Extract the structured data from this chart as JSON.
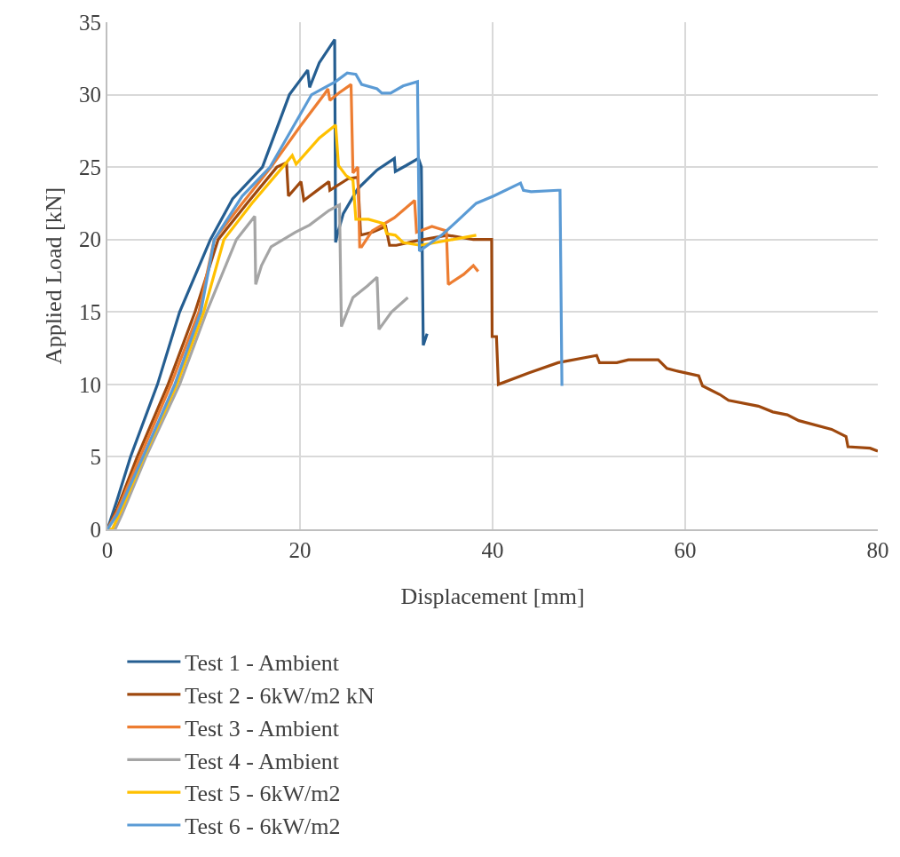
{
  "chart_data": {
    "type": "line",
    "xlabel": "Displacement [mm]",
    "ylabel": "Applied Load [kN]",
    "xlim": [
      0,
      80
    ],
    "xticks": [
      0,
      20,
      40,
      60,
      80
    ],
    "ylim": [
      0,
      35
    ],
    "yticks": [
      0,
      5,
      10,
      15,
      20,
      25,
      30,
      35
    ],
    "grid": true,
    "legend": "bottom",
    "marker": "none",
    "line_style": "solid",
    "series": [
      {
        "name": "Test 1 - Ambient",
        "color": "#255e91",
        "x": [
          0,
          1,
          2.4,
          5.2,
          7.5,
          10.7,
          13,
          16.1,
          18.9,
          20.8,
          21,
          22,
          23.6,
          23.7,
          23.9,
          24.5,
          26,
          28,
          29.8,
          29.9,
          31,
          32.3,
          32.6,
          32.8,
          33.2
        ],
        "values": [
          0,
          2,
          5,
          10,
          15,
          20,
          22.8,
          25,
          30,
          31.7,
          30.5,
          32.2,
          33.8,
          19.8,
          20.4,
          21.8,
          23.5,
          24.8,
          25.6,
          24.7,
          25.1,
          25.6,
          25,
          12.7,
          13.5
        ]
      },
      {
        "name": "Test 2 - 6kW/m2 kN",
        "color": "#9e480e",
        "x": [
          0,
          1,
          3.1,
          6.3,
          9.1,
          11.5,
          14.5,
          17.6,
          18.6,
          18.8,
          20.1,
          20.4,
          22,
          23,
          23.1,
          25,
          26,
          26.3,
          27.5,
          28.9,
          29.3,
          30,
          32,
          35.3,
          38,
          39.9,
          39.95,
          40.4,
          40.6,
          43.8,
          46.8,
          50.8,
          51.1,
          52.9,
          54.1,
          57.2,
          58.1,
          59.3,
          61.4,
          61.8,
          63.6,
          64.5,
          67.6,
          69.1,
          70.6,
          71.8,
          75.2,
          76.7,
          76.9,
          79.2,
          80
        ],
        "values": [
          0,
          1.4,
          5,
          10,
          15,
          20,
          22.5,
          25,
          25.3,
          23,
          24,
          22.7,
          23.5,
          24,
          23.4,
          24.2,
          24.3,
          20.3,
          20.5,
          20.9,
          19.6,
          19.6,
          19.9,
          20.3,
          20,
          20,
          13.3,
          13.3,
          10,
          10.8,
          11.5,
          12,
          11.5,
          11.5,
          11.7,
          11.7,
          11.1,
          10.9,
          10.6,
          9.9,
          9.3,
          8.9,
          8.5,
          8.1,
          7.9,
          7.5,
          6.9,
          6.4,
          5.7,
          5.6,
          5.4
        ]
      },
      {
        "name": "Test 3 - Ambient",
        "color": "#ed7d31",
        "x": [
          0,
          1,
          3.4,
          6.6,
          9.5,
          11.1,
          14,
          17,
          20,
          22.5,
          22.9,
          23.1,
          24,
          25.3,
          25.5,
          26,
          26.2,
          26.4,
          27.5,
          29.8,
          31.9,
          32.1,
          33.7,
          35.2,
          35.4,
          37,
          38,
          38.5
        ],
        "values": [
          0,
          1.2,
          5,
          10,
          15,
          20,
          22.5,
          25,
          27.8,
          30,
          30.4,
          29.6,
          30.1,
          30.7,
          24.6,
          25,
          19.5,
          19.5,
          20.6,
          21.5,
          22.7,
          20.5,
          20.9,
          20.6,
          16.9,
          17.6,
          18.2,
          17.8
        ]
      },
      {
        "name": "Test 4 - Ambient",
        "color": "#a5a5a5",
        "x": [
          0,
          0.8,
          1.5,
          4,
          7.5,
          10.3,
          13.4,
          15.3,
          15.4,
          16,
          17,
          19.5,
          21,
          23,
          24.1,
          24.3,
          25.5,
          27,
          28,
          28.2,
          29.5,
          31.2
        ],
        "values": [
          0,
          0,
          1,
          5,
          10,
          15,
          20,
          21.6,
          16.9,
          18.2,
          19.5,
          20.5,
          21,
          22,
          22.4,
          14,
          16,
          16.8,
          17.4,
          13.8,
          15,
          16
        ]
      },
      {
        "name": "Test 5 - 6kW/m2",
        "color": "#ffc000",
        "x": [
          0,
          0.5,
          1.5,
          3.8,
          7.2,
          10,
          12.1,
          15,
          18.2,
          19.2,
          19.6,
          22,
          23.7,
          24,
          24.8,
          25.5,
          25.8,
          27.1,
          28.7,
          29,
          29.9,
          30.7,
          32.5,
          38.3
        ],
        "values": [
          0,
          0,
          1.4,
          5,
          10,
          15,
          20,
          22.5,
          25,
          25.8,
          25.2,
          27,
          27.9,
          25.1,
          24.4,
          24.1,
          21.4,
          21.4,
          21.1,
          20.4,
          20.3,
          19.8,
          19.6,
          20.3
        ]
      },
      {
        "name": "Test 6 - 6kW/m2",
        "color": "#5b9bd5",
        "x": [
          0,
          1,
          3.7,
          7,
          9.7,
          11.1,
          14,
          16.9,
          21.2,
          23.7,
          24.9,
          25.8,
          26.4,
          28,
          28.5,
          29.4,
          30.7,
          32.2,
          32.4,
          34.7,
          36.2,
          38.3,
          40.1,
          42.9,
          43.2,
          44,
          46.8,
          47,
          47.2
        ],
        "values": [
          0,
          1,
          5,
          10,
          15,
          20,
          23,
          25,
          30,
          30.9,
          31.5,
          31.4,
          30.7,
          30.4,
          30.1,
          30.1,
          30.6,
          30.9,
          19.2,
          20.3,
          21.2,
          22.5,
          23,
          23.9,
          23.4,
          23.3,
          23.4,
          23.4,
          9.9
        ]
      }
    ]
  }
}
